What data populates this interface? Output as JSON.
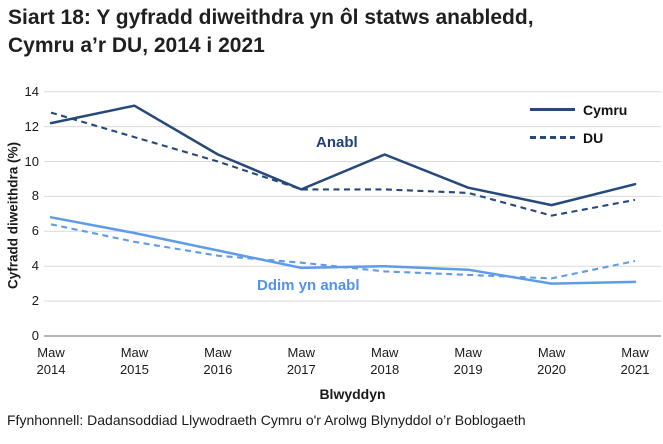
{
  "title": {
    "line1": "Siart 18: Y gyfradd diweithdra yn ôl statws anabledd,",
    "line2": "Cymru a’r DU, 2014 i 2021"
  },
  "footer": {
    "source": "Ffynhonnell: Dadansoddiad Llywodraeth Cymru o'r Arolwg Blynyddol o’r Boblogaeth"
  },
  "colors": {
    "dark_line": "#26497b",
    "light_line": "#5e9ce9",
    "anabl_label": "#1f4177",
    "ddim_label": "#5592ea",
    "grid": "#d9d9d9",
    "axis": "#9d9d9d",
    "text": "#1a1a1a"
  },
  "chart_data": {
    "type": "line",
    "title": "Siart 18: Y gyfradd diweithdra yn ôl statws anabledd, Cymru a’r DU, 2014 i 2021",
    "xlabel": "Blwyddyn",
    "ylabel": "Cyfradd diweithdra (%)",
    "ylim": [
      0,
      14
    ],
    "ytick_step": 2,
    "yticks": [
      0,
      2,
      4,
      6,
      8,
      10,
      12,
      14
    ],
    "grid": "horizontal",
    "categories": [
      "Maw 2014",
      "Maw 2015",
      "Maw 2016",
      "Maw 2017",
      "Maw 2018",
      "Maw 2019",
      "Maw 2020",
      "Maw 2021"
    ],
    "series": [
      {
        "name": "Cymru Anabl",
        "legend": "Cymru",
        "group": "Anabl",
        "color": "#26497b",
        "dash": false,
        "values": [
          12.2,
          13.2,
          10.4,
          8.4,
          10.4,
          8.5,
          7.5,
          8.7
        ]
      },
      {
        "name": "DU Anabl",
        "legend": "DU",
        "group": "Anabl",
        "color": "#26497b",
        "dash": true,
        "values": [
          12.8,
          11.4,
          10.0,
          8.4,
          8.4,
          8.2,
          6.9,
          7.8
        ]
      },
      {
        "name": "Cymru Ddim yn anabl",
        "legend": "Cymru",
        "group": "Ddim yn anabl",
        "color": "#5e9ce9",
        "dash": false,
        "values": [
          6.8,
          5.9,
          4.9,
          3.9,
          4.0,
          3.8,
          3.0,
          3.1
        ]
      },
      {
        "name": "DU Ddim yn anabl",
        "legend": "DU",
        "group": "Ddim yn anabl",
        "color": "#5e9ce9",
        "dash": true,
        "values": [
          6.4,
          5.4,
          4.6,
          4.2,
          3.7,
          3.5,
          3.3,
          4.3
        ]
      }
    ],
    "annotations": [
      {
        "text": "Anabl",
        "color": "#1f4177"
      },
      {
        "text": "Ddim yn anabl",
        "color": "#5592ea"
      }
    ],
    "legend": {
      "position": "top-right",
      "items": [
        {
          "label": "Cymru",
          "style": "solid"
        },
        {
          "label": "DU",
          "style": "dashed"
        }
      ]
    }
  }
}
